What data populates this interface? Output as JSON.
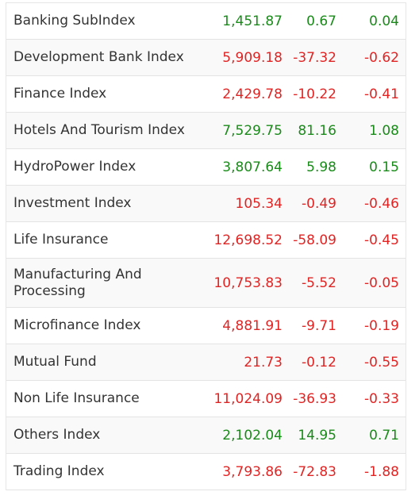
{
  "colors": {
    "positive": "#1a8a1a",
    "negative": "#e02424",
    "name_text": "#333333"
  },
  "indices": [
    {
      "name": "Banking SubIndex",
      "ltp": "1,451.87",
      "change": "0.67",
      "pct": "0.04",
      "trend": "up"
    },
    {
      "name": "Development Bank Index",
      "ltp": "5,909.18",
      "change": "-37.32",
      "pct": "-0.62",
      "trend": "down"
    },
    {
      "name": "Finance Index",
      "ltp": "2,429.78",
      "change": "-10.22",
      "pct": "-0.41",
      "trend": "down"
    },
    {
      "name": "Hotels And Tourism Index",
      "ltp": "7,529.75",
      "change": "81.16",
      "pct": "1.08",
      "trend": "up"
    },
    {
      "name": "HydroPower Index",
      "ltp": "3,807.64",
      "change": "5.98",
      "pct": "0.15",
      "trend": "up"
    },
    {
      "name": "Investment Index",
      "ltp": "105.34",
      "change": "-0.49",
      "pct": "-0.46",
      "trend": "down"
    },
    {
      "name": "Life Insurance",
      "ltp": "12,698.52",
      "change": "-58.09",
      "pct": "-0.45",
      "trend": "down"
    },
    {
      "name": "Manufacturing And Processing",
      "ltp": "10,753.83",
      "change": "-5.52",
      "pct": "-0.05",
      "trend": "down"
    },
    {
      "name": "Microfinance Index",
      "ltp": "4,881.91",
      "change": "-9.71",
      "pct": "-0.19",
      "trend": "down"
    },
    {
      "name": "Mutual Fund",
      "ltp": "21.73",
      "change": "-0.12",
      "pct": "-0.55",
      "trend": "down"
    },
    {
      "name": "Non Life Insurance",
      "ltp": "11,024.09",
      "change": "-36.93",
      "pct": "-0.33",
      "trend": "down"
    },
    {
      "name": "Others Index",
      "ltp": "2,102.04",
      "change": "14.95",
      "pct": "0.71",
      "trend": "up"
    },
    {
      "name": "Trading Index",
      "ltp": "3,793.86",
      "change": "-72.83",
      "pct": "-1.88",
      "trend": "down"
    }
  ]
}
